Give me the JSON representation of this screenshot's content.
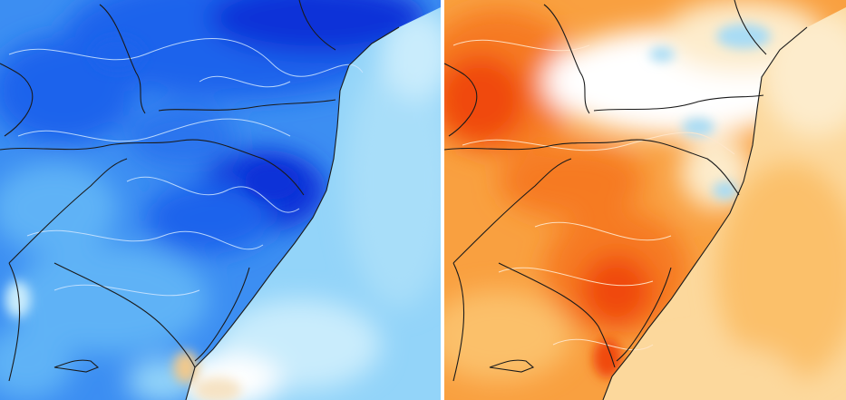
{
  "maps": [
    {
      "id": "cold-anomaly",
      "palette": [
        "#0a32d8",
        "#1e64ec",
        "#3c8ef2",
        "#5fb2f6",
        "#93d4f9",
        "#c9ecfc",
        "#f6e3c4",
        "#f0c98e"
      ],
      "colors": {
        "ocean": "#93d4f9",
        "land": "#3c8ef2",
        "deep": "#0a32d8",
        "coastal": "#c9ecfc",
        "warm": "#f0c98e"
      }
    },
    {
      "id": "warm-anomaly",
      "palette": [
        "#f04a10",
        "#f67a20",
        "#f9a040",
        "#fbc06a",
        "#fcd89c",
        "#fdeccc",
        "#ffffff",
        "#a8dcf5",
        "#6cc0f2"
      ],
      "colors": {
        "ocean": "#fcd89c",
        "land": "#f9a040",
        "hot": "#f04a10",
        "pale": "#fdeccc",
        "cool": "#6cc0f2"
      }
    }
  ],
  "layout_colors": {
    "border_lines": "#1a1a1a",
    "contour_lines": "#cfe6ff",
    "divider": "#ffffff"
  }
}
